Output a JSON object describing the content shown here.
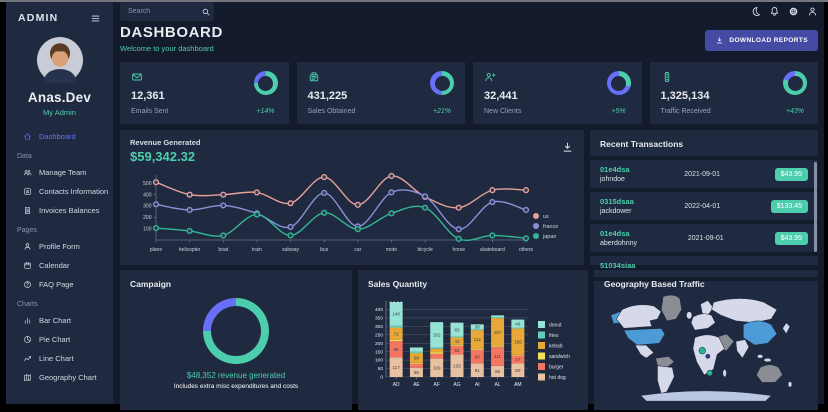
{
  "colors": {
    "background": "#141b2d",
    "panel": "#1f2a40",
    "accent_teal": "#4cceac",
    "accent_blue": "#6870fa",
    "download_button": "#454ba5"
  },
  "sidebar": {
    "brand": "ADMIN",
    "user_name": "Anas.Dev",
    "user_role": "My Admin",
    "items": [
      {
        "label": "Dashboard",
        "icon": "home",
        "active": true
      },
      {
        "section": "Data"
      },
      {
        "label": "Manage Team",
        "icon": "people"
      },
      {
        "label": "Contacts Information",
        "icon": "contacts"
      },
      {
        "label": "Invoices Balances",
        "icon": "receipt"
      },
      {
        "section": "Pages"
      },
      {
        "label": "Profile Form",
        "icon": "person"
      },
      {
        "label": "Calendar",
        "icon": "calendar"
      },
      {
        "label": "FAQ Page",
        "icon": "help"
      },
      {
        "section": "Charts"
      },
      {
        "label": "Bar Chart",
        "icon": "bar"
      },
      {
        "label": "Pie Chart",
        "icon": "pie"
      },
      {
        "label": "Line Chart",
        "icon": "linechart"
      },
      {
        "label": "Geography Chart",
        "icon": "map"
      }
    ]
  },
  "topbar": {
    "search_placeholder": "Search",
    "icons": [
      "moon",
      "bell",
      "gear",
      "person"
    ]
  },
  "header": {
    "title": "DASHBOARD",
    "subtitle": "Welcome to your dashboard",
    "download_label": "DOWNLOAD REPORTS"
  },
  "stats": [
    {
      "icon": "email",
      "value": "12,361",
      "label": "Emails Sent",
      "delta": "+14%",
      "progress": 0.75
    },
    {
      "icon": "pos",
      "value": "431,225",
      "label": "Sales Obtained",
      "delta": "+21%",
      "progress": 0.5
    },
    {
      "icon": "personadd",
      "value": "32,441",
      "label": "New Clients",
      "delta": "+5%",
      "progress": 0.3
    },
    {
      "icon": "traffic",
      "value": "1,325,134",
      "label": "Traffic Received",
      "delta": "+43%",
      "progress": 0.8
    }
  ],
  "revenue": {
    "title": "Revenue Generated",
    "amount": "$59,342.32"
  },
  "transactions": {
    "title": "Recent Transactions",
    "rows": [
      {
        "id": "01e4dsa",
        "user": "johndoe",
        "date": "2021-09-01",
        "amount": "$43.95"
      },
      {
        "id": "0315dsaa",
        "user": "jackdower",
        "date": "2022-04-01",
        "amount": "$133.45"
      },
      {
        "id": "01e4dsa",
        "user": "aberdohnny",
        "date": "2021-09-01",
        "amount": "$43.95"
      },
      {
        "id": "51034siaa",
        "user": "",
        "date": "",
        "amount": ""
      }
    ]
  },
  "campaign": {
    "title": "Campaign",
    "caption": "$48,352 revenue generated",
    "subcaption": "Includes extra misc expenditures and costs",
    "progress": 0.75
  },
  "geography": {
    "title": "Geography Based Traffic",
    "colors": {
      "base": "#d6d9ea",
      "highlight_blue": "#4d9bd6",
      "highlight_grey": "#8b8d94",
      "highlight_teal": "#27b598",
      "antarctica": "#bcc8e2"
    }
  },
  "chart_data": [
    {
      "type": "line",
      "title": "Revenue Generated",
      "x": [
        "plane",
        "helicopter",
        "boat",
        "train",
        "subway",
        "bus",
        "car",
        "moto",
        "bicycle",
        "horse",
        "skateboard",
        "others"
      ],
      "series": [
        {
          "name": "us",
          "color": "#e8a09a",
          "values": [
            510,
            400,
            400,
            420,
            325,
            555,
            310,
            565,
            380,
            285,
            440,
            440
          ]
        },
        {
          "name": "france",
          "color": "#8c8fd6",
          "values": [
            315,
            265,
            305,
            235,
            115,
            415,
            120,
            420,
            385,
            95,
            335,
            265
          ]
        },
        {
          "name": "japan",
          "color": "#31b995",
          "values": [
            105,
            80,
            40,
            225,
            40,
            240,
            95,
            235,
            285,
            10,
            40,
            15
          ]
        }
      ],
      "yticks": [
        100,
        200,
        300,
        400,
        500
      ],
      "ylim": [
        0,
        600
      ],
      "legend_position": "right"
    },
    {
      "type": "bar",
      "stacked": true,
      "title": "Sales Quantity",
      "categories": [
        "AD",
        "AE",
        "AF",
        "AG",
        "AI",
        "AL",
        "AM"
      ],
      "series": [
        {
          "name": "hot dog",
          "color": "#e8c1a0",
          "values": [
            117,
            55,
            109,
            133,
            81,
            66,
            80
          ]
        },
        {
          "name": "burger",
          "color": "#f47560",
          "values": [
            96,
            23,
            28,
            52,
            80,
            111,
            47
          ]
        },
        {
          "name": "sandwich",
          "color": "#f1e15b",
          "values": [
            8,
            6,
            8,
            6,
            5,
            5,
            4
          ]
        },
        {
          "name": "kebab",
          "color": "#e8a838",
          "values": [
            72,
            58,
            22,
            43,
            112,
            167,
            156
          ]
        },
        {
          "name": "fries",
          "color": "#61cdbb",
          "values": [
            10,
            8,
            6,
            5,
            4,
            6,
            4
          ]
        },
        {
          "name": "donut",
          "color": "#97e3d5",
          "values": [
            140,
            25,
            152,
            83,
            30,
            10,
            49
          ]
        }
      ],
      "legend_order": [
        "donut",
        "fries",
        "kebab",
        "sandwich",
        "burger",
        "hot dog"
      ],
      "yticks": [
        0,
        50,
        100,
        150,
        200,
        250,
        300,
        350,
        400
      ],
      "ylim": [
        0,
        450
      ],
      "legend_position": "right"
    },
    {
      "type": "pie",
      "title": "Campaign",
      "donut": true,
      "slices": [
        {
          "name": "revenue generated",
          "color": "#4cceac",
          "value": 75
        },
        {
          "name": "expenditures",
          "color": "#6870fa",
          "value": 25
        }
      ]
    }
  ]
}
